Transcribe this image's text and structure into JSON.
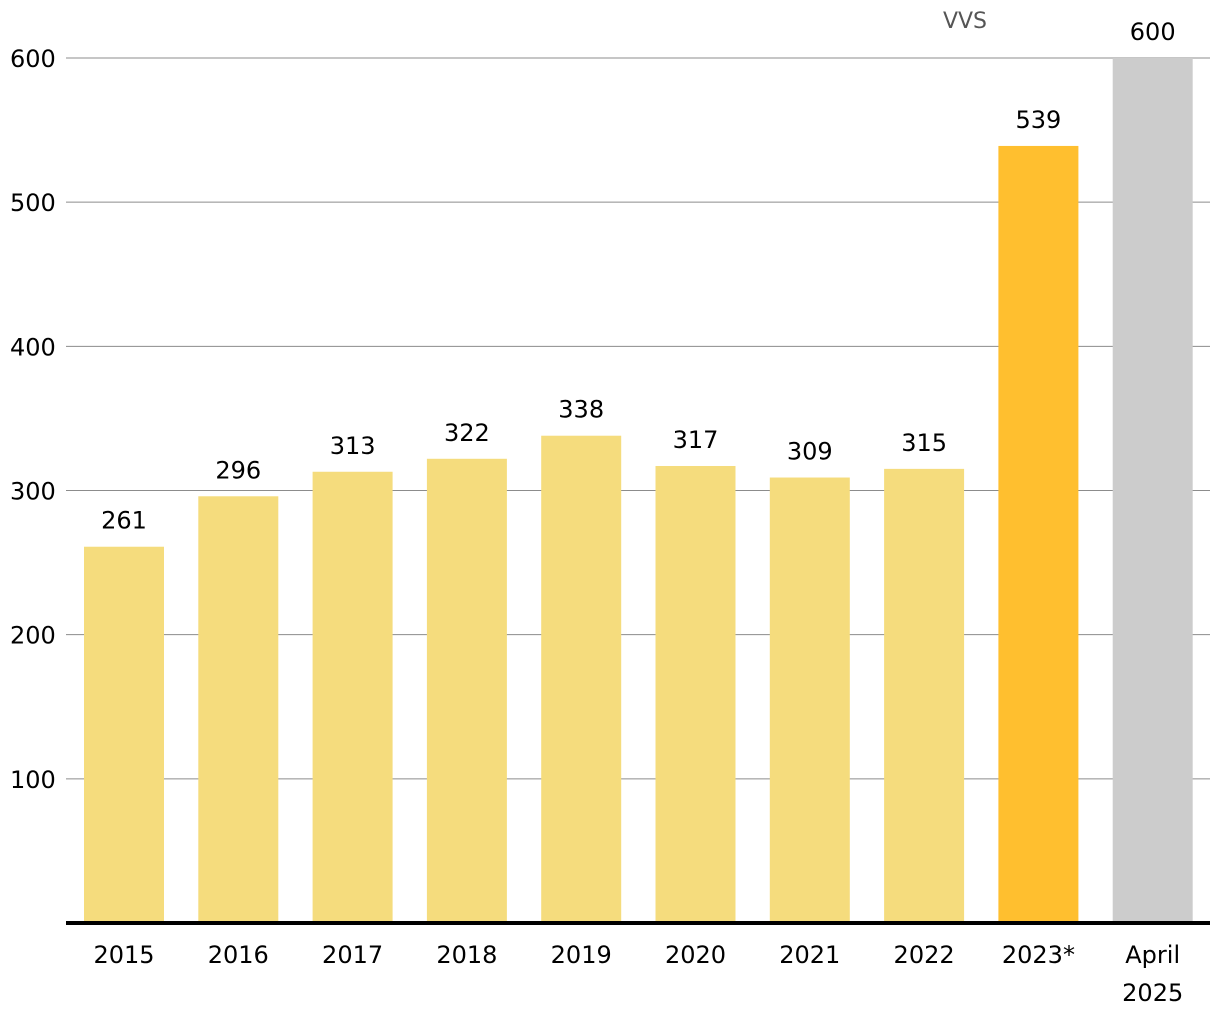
{
  "chart_data": {
    "type": "bar",
    "title": "",
    "xlabel": "",
    "ylabel": "",
    "ylim": [
      0,
      600
    ],
    "yticks": [
      100,
      200,
      300,
      400,
      500,
      600
    ],
    "grid": true,
    "annotation": "VVS",
    "categories": [
      {
        "label": [
          "2015"
        ],
        "value": 261,
        "color": "#f5dc7d"
      },
      {
        "label": [
          "2016"
        ],
        "value": 296,
        "color": "#f5dc7d"
      },
      {
        "label": [
          "2017"
        ],
        "value": 313,
        "color": "#f5dc7d"
      },
      {
        "label": [
          "2018"
        ],
        "value": 322,
        "color": "#f5dc7d"
      },
      {
        "label": [
          "2019"
        ],
        "value": 338,
        "color": "#f5dc7d"
      },
      {
        "label": [
          "2020"
        ],
        "value": 317,
        "color": "#f5dc7d"
      },
      {
        "label": [
          "2021"
        ],
        "value": 309,
        "color": "#f5dc7d"
      },
      {
        "label": [
          "2022"
        ],
        "value": 315,
        "color": "#f5dc7d"
      },
      {
        "label": [
          "2023*"
        ],
        "value": 539,
        "color": "#ffbf2f"
      },
      {
        "label": [
          "April",
          "2025"
        ],
        "value": 600,
        "color": "#cccccc"
      }
    ]
  }
}
